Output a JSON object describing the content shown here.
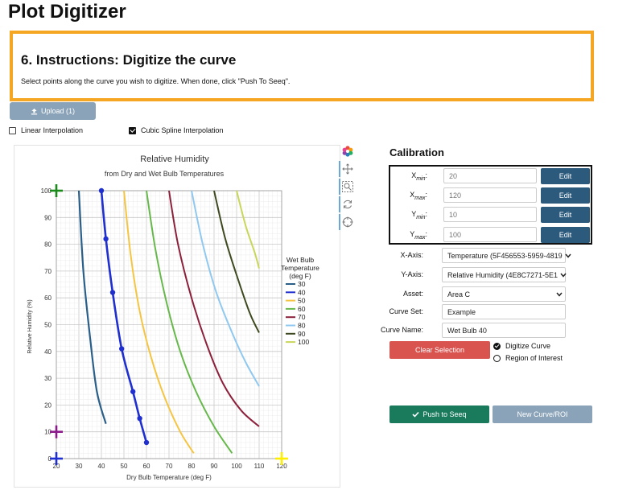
{
  "app": {
    "title": "Plot Digitizer"
  },
  "instructions": {
    "heading": "6. Instructions: Digitize the curve",
    "text": "Select points along the curve you wish to digitize. When done, click \"Push To Seeq\"."
  },
  "upload": {
    "label": "Upload (1)"
  },
  "interpolation": {
    "linear": {
      "label": "Linear Interpolation",
      "checked": false
    },
    "cubic": {
      "label": "Cubic Spline Interpolation",
      "checked": true
    }
  },
  "toolbar": {
    "tools": [
      "color-wheel-icon",
      "move-icon",
      "zoom-icon",
      "refresh-icon",
      "crosshair-icon"
    ]
  },
  "chart_data": {
    "type": "line",
    "title": "Relative Humidity",
    "subtitle": "from Dry and Wet Bulb Temperatures",
    "xlabel": "Dry Bulb Temperature (deg F)",
    "ylabel": "Relative Humidity (%)",
    "xlim": [
      20,
      120
    ],
    "ylim": [
      0,
      100
    ],
    "x_ticks": [
      "20",
      "30",
      "40",
      "50",
      "60",
      "70",
      "80",
      "90",
      "100",
      "110",
      "120"
    ],
    "y_ticks": [
      "0",
      "10",
      "20",
      "30",
      "40",
      "50",
      "60",
      "70",
      "80",
      "90",
      "100"
    ],
    "grid": true,
    "legend": {
      "title": [
        "Wet Bulb",
        "Temperature",
        "(deg F)"
      ],
      "placement": "right",
      "entries": [
        {
          "label": "30",
          "color": "#2a5f8a"
        },
        {
          "label": "40",
          "color": "#1f2fd0"
        },
        {
          "label": "50",
          "color": "#f5c542"
        },
        {
          "label": "60",
          "color": "#66b84a"
        },
        {
          "label": "70",
          "color": "#8c1f3a"
        },
        {
          "label": "80",
          "color": "#8fc8f0"
        },
        {
          "label": "90",
          "color": "#3d4a1f"
        },
        {
          "label": "100",
          "color": "#c9d65a"
        }
      ]
    },
    "series": [
      {
        "name": "30",
        "color": "#2a5f8a",
        "points": [
          [
            30,
            100
          ],
          [
            32,
            70
          ],
          [
            35,
            45
          ],
          [
            38,
            25
          ],
          [
            42,
            13
          ]
        ]
      },
      {
        "name": "40",
        "color": "#1f2fd0",
        "points": [
          [
            40,
            100
          ],
          [
            42,
            82
          ],
          [
            45,
            62
          ],
          [
            49,
            41
          ],
          [
            54,
            25
          ],
          [
            57,
            15
          ],
          [
            60,
            6
          ]
        ]
      },
      {
        "name": "50",
        "color": "#f5c542",
        "points": [
          [
            50,
            100
          ],
          [
            53,
            76
          ],
          [
            57,
            55
          ],
          [
            62,
            38
          ],
          [
            68,
            23
          ],
          [
            75,
            10
          ],
          [
            81,
            2
          ]
        ]
      },
      {
        "name": "60",
        "color": "#66b84a",
        "points": [
          [
            60,
            100
          ],
          [
            64,
            78
          ],
          [
            69,
            58
          ],
          [
            75,
            40
          ],
          [
            82,
            25
          ],
          [
            90,
            12
          ],
          [
            98,
            2
          ]
        ]
      },
      {
        "name": "70",
        "color": "#8c1f3a",
        "points": [
          [
            70,
            100
          ],
          [
            74,
            80
          ],
          [
            80,
            60
          ],
          [
            87,
            42
          ],
          [
            94,
            28
          ],
          [
            102,
            18
          ],
          [
            110,
            12
          ]
        ]
      },
      {
        "name": "80",
        "color": "#8fc8f0",
        "points": [
          [
            80,
            100
          ],
          [
            85,
            80
          ],
          [
            91,
            62
          ],
          [
            98,
            47
          ],
          [
            104,
            36
          ],
          [
            110,
            27
          ]
        ]
      },
      {
        "name": "90",
        "color": "#3d4a1f",
        "points": [
          [
            90,
            100
          ],
          [
            95,
            82
          ],
          [
            101,
            66
          ],
          [
            106,
            54
          ],
          [
            110,
            47
          ]
        ]
      },
      {
        "name": "100",
        "color": "#c9d65a",
        "points": [
          [
            100,
            100
          ],
          [
            104,
            87
          ],
          [
            108,
            77
          ],
          [
            110,
            71
          ]
        ]
      }
    ],
    "digitized": {
      "color": "#1f2fd0",
      "points": [
        [
          40,
          100
        ],
        [
          42,
          82
        ],
        [
          45,
          62
        ],
        [
          49,
          41
        ],
        [
          54,
          25
        ],
        [
          57,
          15
        ],
        [
          60,
          6
        ]
      ]
    },
    "calibration_markers": [
      {
        "name": "xmin-marker",
        "color": "#1f2fd0",
        "x": 20,
        "y": 0
      },
      {
        "name": "xmax-marker",
        "color": "#ffee00",
        "x": 120,
        "y": 0
      },
      {
        "name": "ymin-marker",
        "color": "#8b1a8b",
        "x": 20,
        "y": 10
      },
      {
        "name": "ymax-marker",
        "color": "#1a8a1a",
        "x": 20,
        "y": 100
      }
    ]
  },
  "calibration": {
    "title": "Calibration",
    "rows": [
      {
        "label": "X",
        "sub": "min",
        "value": "20",
        "edit": "Edit"
      },
      {
        "label": "X",
        "sub": "max",
        "value": "120",
        "edit": "Edit"
      },
      {
        "label": "Y",
        "sub": "min",
        "value": "10",
        "edit": "Edit"
      },
      {
        "label": "Y",
        "sub": "max",
        "value": "100",
        "edit": "Edit"
      }
    ]
  },
  "fields": {
    "x_axis": {
      "label": "X-Axis:",
      "value": "Temperature (5F456553-5959-4819"
    },
    "y_axis": {
      "label": "Y-Axis:",
      "value": "Relative Humidity (4E8C7271-5E1"
    },
    "asset": {
      "label": "Asset:",
      "value": "Area C"
    },
    "curve_set": {
      "label": "Curve Set:",
      "value": "Example"
    },
    "curve_name": {
      "label": "Curve Name:",
      "value": "Wet Bulb 40"
    }
  },
  "actions": {
    "clear": "Clear Selection",
    "mode_digitize": "Digitize Curve",
    "mode_roi": "Region of Interest",
    "push": "Push to Seeq",
    "new": "New Curve/ROI"
  }
}
